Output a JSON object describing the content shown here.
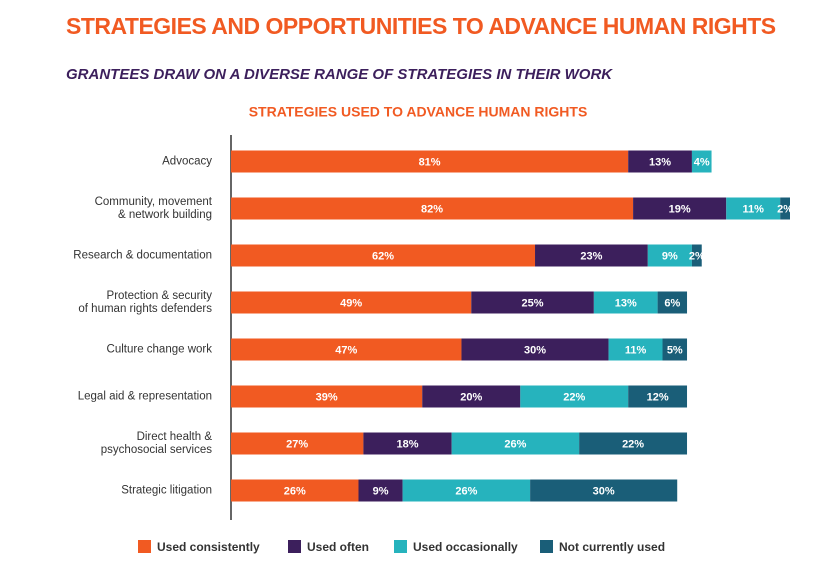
{
  "chart_data": {
    "type": "bar",
    "orientation": "horizontal",
    "stacked": true,
    "title": "STRATEGIES AND OPPORTUNITIES TO ADVANCE HUMAN RIGHTS",
    "subtitle": "GRANTEES DRAW ON A DIVERSE RANGE OF STRATEGIES IN THEIR WORK",
    "chart_title": "STRATEGIES USED TO ADVANCE HUMAN RIGHTS",
    "categories": [
      "Advocacy",
      "Community, movement\n& network building",
      "Research & documentation",
      "Protection & security\nof human rights defenders",
      "Culture change work",
      "Legal aid & representation",
      "Direct health &\npsychosocial services",
      "Strategic litigation"
    ],
    "series": [
      {
        "name": "Used consistently",
        "color": "#f15a22",
        "values": [
          81,
          82,
          62,
          49,
          47,
          39,
          27,
          26
        ],
        "value_labels": [
          "81%",
          "82%",
          "62%",
          "49%",
          "47%",
          "39%",
          "27%",
          "26%"
        ]
      },
      {
        "name": "Used often",
        "color": "#3c1f5c",
        "values": [
          13,
          19,
          23,
          25,
          30,
          20,
          18,
          9
        ],
        "value_labels": [
          "13%",
          "19%",
          "23%",
          "25%",
          "30%",
          "20%",
          "18%",
          "9%"
        ]
      },
      {
        "name": "Used occasionally",
        "color": "#26b3bd",
        "values": [
          4,
          11,
          9,
          13,
          11,
          22,
          26,
          26
        ],
        "value_labels": [
          "4%",
          "11%",
          "9%",
          "13%",
          "11%",
          "22%",
          "26%",
          "26%"
        ]
      },
      {
        "name": "Not currently used",
        "color": "#1a5e78",
        "values": [
          null,
          2,
          2,
          6,
          5,
          12,
          22,
          30
        ],
        "value_labels": [
          null,
          "2%",
          "2%",
          "6%",
          "5%",
          "12%",
          "22%",
          "30%"
        ]
      }
    ],
    "legend": "bottom"
  }
}
